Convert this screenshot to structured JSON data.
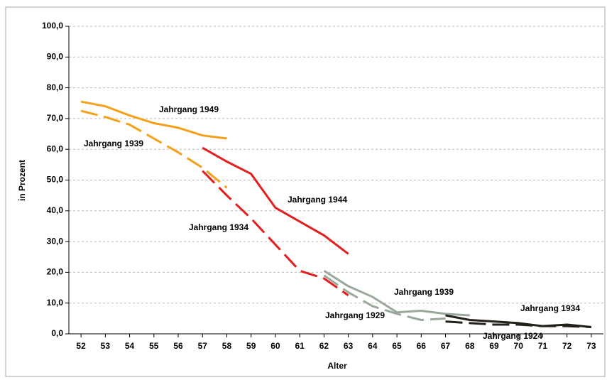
{
  "chart_data": {
    "type": "line",
    "x_label": "Alter",
    "y_label": "in Prozent",
    "x": [
      52,
      53,
      54,
      55,
      56,
      57,
      58,
      59,
      60,
      61,
      62,
      63,
      64,
      65,
      66,
      67,
      68,
      69,
      70,
      71,
      72,
      73
    ],
    "xlim": [
      51.5,
      73.5
    ],
    "xticks": [
      52,
      53,
      54,
      55,
      56,
      57,
      58,
      59,
      60,
      61,
      62,
      63,
      64,
      65,
      66,
      67,
      68,
      69,
      70,
      71,
      72,
      73
    ],
    "ylim": [
      0,
      100
    ],
    "yticks": [
      {
        "value": 0,
        "label": "0,0"
      },
      {
        "value": 10,
        "label": "10,0"
      },
      {
        "value": 20,
        "label": "20,0"
      },
      {
        "value": 30,
        "label": "30,0"
      },
      {
        "value": 40,
        "label": "40,0"
      },
      {
        "value": 50,
        "label": "50,0"
      },
      {
        "value": 60,
        "label": "60,0"
      },
      {
        "value": 70,
        "label": "70,0"
      },
      {
        "value": 80,
        "label": "80,0"
      },
      {
        "value": 90,
        "label": "90,0"
      },
      {
        "value": 100,
        "label": "100,0"
      }
    ],
    "grid": true,
    "series": [
      {
        "name": "Jahrgang 1949",
        "color": "#f5a01a",
        "dashed": false,
        "values": [
          75.5,
          74,
          71,
          68.5,
          67,
          64.5,
          63.5,
          null,
          null,
          null,
          null,
          null,
          null,
          null,
          null,
          null,
          null,
          null,
          null,
          null,
          null,
          null
        ]
      },
      {
        "name": "Jahrgang 1939",
        "color": "#f5a01a",
        "dashed": true,
        "values": [
          72.5,
          70.5,
          68,
          63.5,
          59,
          54,
          47.5,
          null,
          null,
          null,
          null,
          null,
          null,
          null,
          null,
          null,
          null,
          null,
          null,
          null,
          null,
          null
        ]
      },
      {
        "name": "Jahrgang 1944",
        "color": "#e41e1e",
        "dashed": false,
        "values": [
          null,
          null,
          null,
          null,
          null,
          60.5,
          56,
          52,
          41,
          36.5,
          32,
          26,
          null,
          null,
          null,
          null,
          null,
          null,
          null,
          null,
          null,
          null
        ]
      },
      {
        "name": "Jahrgang 1934",
        "color": "#e41e1e",
        "dashed": true,
        "values": [
          null,
          null,
          null,
          null,
          null,
          53,
          45,
          37.5,
          29,
          20.5,
          18,
          12.5,
          null,
          null,
          null,
          null,
          null,
          null,
          null,
          null,
          null,
          null
        ]
      },
      {
        "name": "Jahrgang 1939",
        "color": "#9aa89a",
        "dashed": false,
        "values": [
          null,
          null,
          null,
          null,
          null,
          null,
          null,
          null,
          null,
          null,
          20.5,
          15.5,
          12,
          7,
          7.5,
          6.5,
          6,
          null,
          null,
          null,
          null,
          null
        ]
      },
      {
        "name": "Jahrgang 1929",
        "color": "#9aa89a",
        "dashed": true,
        "values": [
          null,
          null,
          null,
          null,
          null,
          null,
          null,
          null,
          null,
          null,
          19,
          13.5,
          9,
          6.5,
          4.5,
          5,
          null,
          null,
          null,
          null,
          null,
          null
        ]
      },
      {
        "name": "Jahrgang 1934",
        "color": "#231f1a",
        "dashed": false,
        "values": [
          null,
          null,
          null,
          null,
          null,
          null,
          null,
          null,
          null,
          null,
          null,
          null,
          null,
          null,
          null,
          6,
          4.5,
          4,
          3.5,
          2.5,
          3,
          2.2
        ]
      },
      {
        "name": "Jahrgang 1924",
        "color": "#231f1a",
        "dashed": true,
        "values": [
          null,
          null,
          null,
          null,
          null,
          null,
          null,
          null,
          null,
          null,
          null,
          null,
          null,
          null,
          null,
          4,
          3.5,
          3,
          3,
          2.5,
          2.5,
          2.2
        ]
      }
    ]
  }
}
